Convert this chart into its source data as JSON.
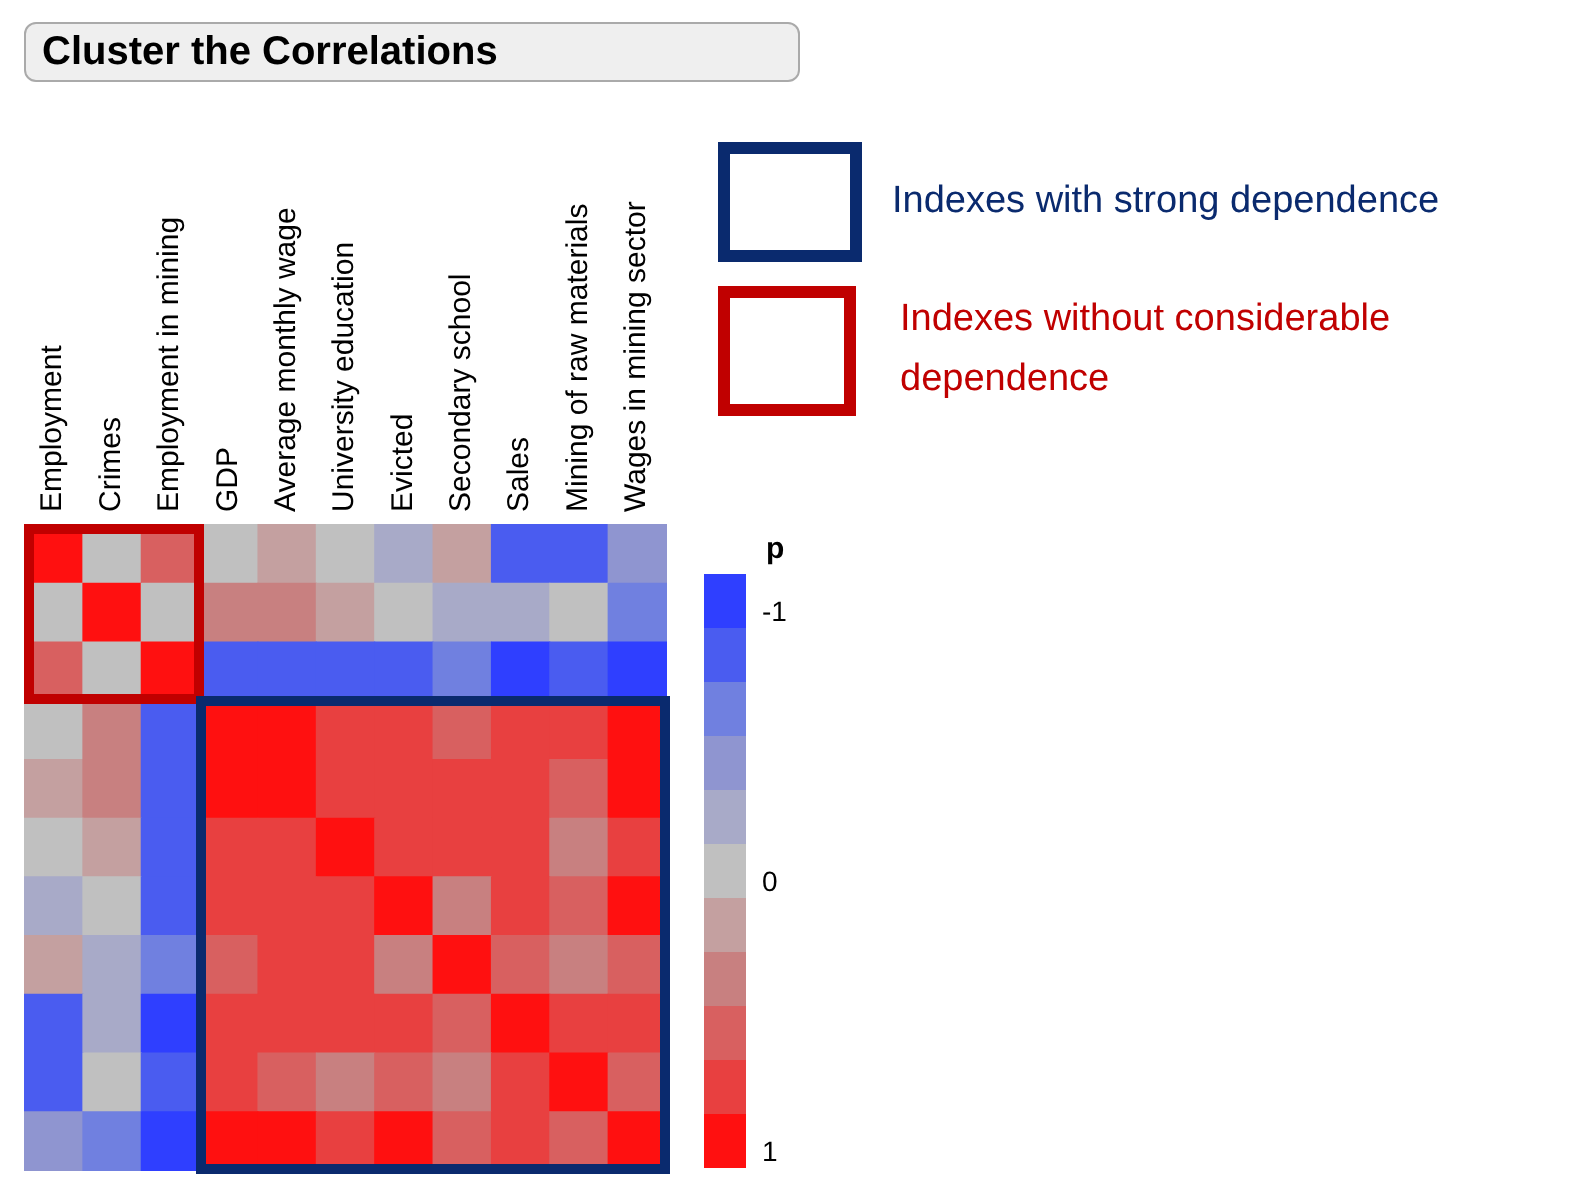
{
  "chart_data": {
    "type": "heatmap",
    "title": "Cluster the Correlations",
    "categories": [
      "Employment",
      "Crimes",
      "Employment in mining",
      "GDP",
      "Average monthly wage",
      "University education",
      "Evicted",
      "Secondary school",
      "Sales",
      "Mining of raw materials",
      "Wages in mining sector"
    ],
    "y_categories": [
      null,
      null,
      null,
      null,
      null,
      null,
      null,
      null,
      null,
      null,
      null
    ],
    "cells": [
      [
        1,
        0,
        0.6,
        0,
        0.2,
        0,
        -0.2,
        0.2,
        -0.8,
        -0.8,
        -0.4
      ],
      [
        0,
        1,
        0,
        0.4,
        0.4,
        0.2,
        0,
        -0.2,
        -0.2,
        0,
        -0.6
      ],
      [
        0.6,
        0,
        1,
        -0.8,
        -0.8,
        -0.8,
        -0.8,
        -0.6,
        -1,
        -0.8,
        -1
      ],
      [
        0,
        0.4,
        -0.8,
        1,
        1,
        0.8,
        0.8,
        0.6,
        0.8,
        0.8,
        1
      ],
      [
        0.2,
        0.4,
        -0.8,
        1,
        1,
        0.8,
        0.8,
        0.8,
        0.8,
        0.6,
        1
      ],
      [
        0,
        0.2,
        -0.8,
        0.8,
        0.8,
        1,
        0.8,
        0.8,
        0.8,
        0.4,
        0.8
      ],
      [
        -0.2,
        0,
        -0.8,
        0.8,
        0.8,
        0.8,
        1,
        0.4,
        0.8,
        0.6,
        1
      ],
      [
        0.2,
        -0.2,
        -0.6,
        0.6,
        0.8,
        0.8,
        0.4,
        1,
        0.6,
        0.4,
        0.6
      ],
      [
        -0.8,
        -0.2,
        -1,
        0.8,
        0.8,
        0.8,
        0.8,
        0.6,
        1,
        0.8,
        0.8
      ],
      [
        -0.8,
        0,
        -0.8,
        0.8,
        0.6,
        0.4,
        0.6,
        0.4,
        0.8,
        1,
        0.6
      ],
      [
        -0.4,
        -0.6,
        -1,
        1,
        1,
        0.8,
        1,
        0.6,
        0.8,
        0.6,
        1
      ]
    ],
    "clabel": "p",
    "clim": [
      -1.1,
      1.1
    ],
    "cticks": [
      -1,
      0,
      1
    ],
    "annotations": [
      "Indexes with strong dependence",
      "Indexes without considerable dependence"
    ]
  }
}
